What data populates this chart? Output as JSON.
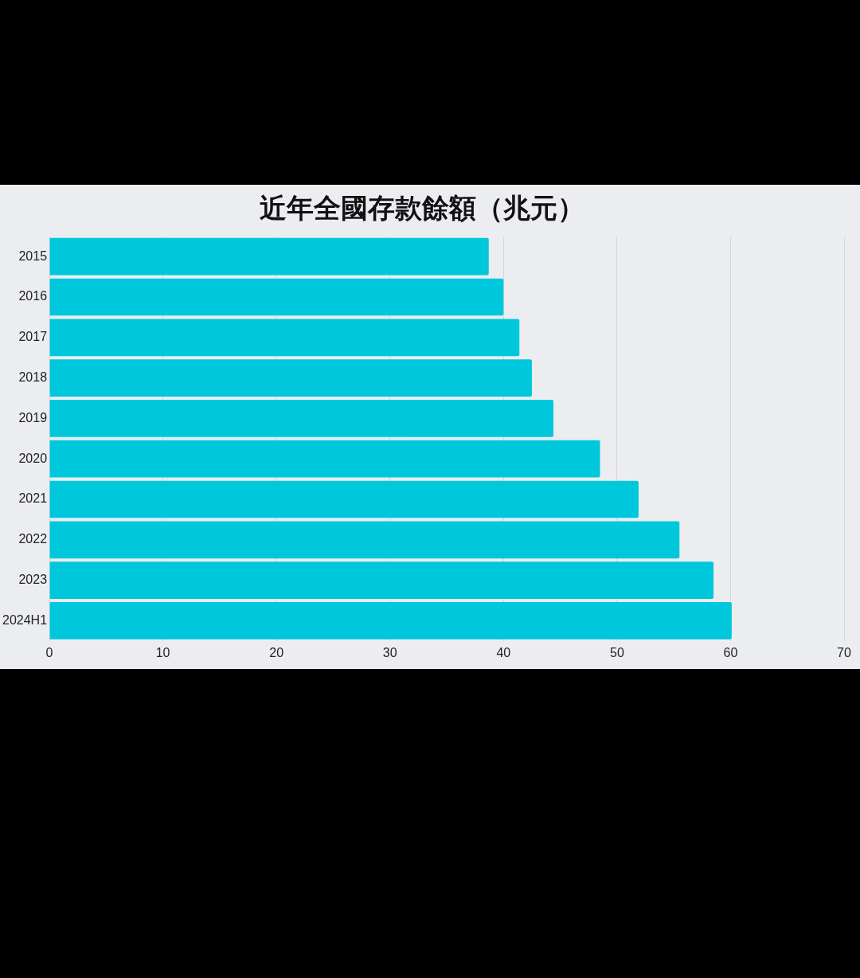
{
  "chart_data": {
    "type": "bar",
    "orientation": "horizontal",
    "title": "近年全國存款餘額（兆元）",
    "categories": [
      "2015",
      "2016",
      "2017",
      "2018",
      "2019",
      "2020",
      "2021",
      "2022",
      "2023",
      "2024H1"
    ],
    "values": [
      38.7,
      40.0,
      41.4,
      42.5,
      44.4,
      48.5,
      51.9,
      55.5,
      58.5,
      60.1
    ],
    "color": "#00c8dc",
    "xlim": [
      0,
      70
    ],
    "xticks": [
      0,
      10,
      20,
      30,
      40,
      50,
      60,
      70
    ],
    "grid": "x",
    "legend": false
  }
}
